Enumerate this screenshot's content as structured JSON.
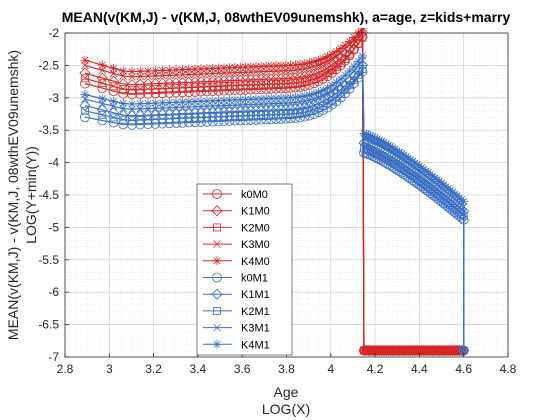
{
  "chart_data": {
    "type": "line",
    "title": "MEAN(v(KM,J) - v(KM,J, 08wthEV09unemshk), a=age, z=kids+marry",
    "xlabel": "Age",
    "xlabel2": "LOG(X)",
    "ylabel": "MEAN(v(KM,J) - v(KM,J, 08wthEV09unemshk)",
    "ylabel2": "LOG(Y+min(Y))",
    "xlim": [
      2.8,
      4.8
    ],
    "ylim": [
      -7,
      -2
    ],
    "xticks": [
      "2.8",
      "3",
      "3.2",
      "3.4",
      "3.6",
      "3.8",
      "4",
      "4.2",
      "4.4",
      "4.6",
      "4.8"
    ],
    "yticks": [
      "-2",
      "-2.5",
      "-3",
      "-3.5",
      "-4",
      "-4.5",
      "-5",
      "-5.5",
      "-6",
      "-6.5",
      "-7"
    ],
    "grid": true,
    "legend_position": "lower-center",
    "colors": {
      "red": "#d62728",
      "blue": "#3a6fc4"
    },
    "series": [
      {
        "name": "k0M0",
        "marker": "circle",
        "color": "red",
        "start": -2.78,
        "min": -2.95,
        "peak": -2.08,
        "post_start": -6.9,
        "post_end": -6.9
      },
      {
        "name": "K1M0",
        "marker": "diamond",
        "color": "red",
        "start": -2.62,
        "min": -2.8,
        "peak": -2.02,
        "post_start": -6.9,
        "post_end": -6.9
      },
      {
        "name": "K2M0",
        "marker": "square",
        "color": "red",
        "start": -2.7,
        "min": -2.88,
        "peak": -2.1,
        "post_start": -6.9,
        "post_end": -6.9
      },
      {
        "name": "K3M0",
        "marker": "x",
        "color": "red",
        "start": -2.5,
        "min": -2.68,
        "peak": -1.98,
        "post_start": -6.9,
        "post_end": -6.9
      },
      {
        "name": "K4M0",
        "marker": "star",
        "color": "red",
        "start": -2.42,
        "min": -2.6,
        "peak": -1.95,
        "post_start": -6.9,
        "post_end": -6.9
      },
      {
        "name": "k0M1",
        "marker": "circle",
        "color": "blue",
        "start": -3.3,
        "min": -3.42,
        "peak": -2.62,
        "post_start": -3.85,
        "post_end": -4.88
      },
      {
        "name": "K1M1",
        "marker": "diamond",
        "color": "blue",
        "start": -3.12,
        "min": -3.28,
        "peak": -2.52,
        "post_start": -3.7,
        "post_end": -4.75
      },
      {
        "name": "K2M1",
        "marker": "square",
        "color": "blue",
        "start": -3.2,
        "min": -3.35,
        "peak": -2.58,
        "post_start": -3.78,
        "post_end": -4.82
      },
      {
        "name": "K3M1",
        "marker": "x",
        "color": "blue",
        "start": -3.02,
        "min": -3.18,
        "peak": -2.45,
        "post_start": -3.62,
        "post_end": -4.68
      },
      {
        "name": "K4M1",
        "marker": "star",
        "color": "blue",
        "start": -2.95,
        "min": -3.1,
        "peak": -2.38,
        "post_start": -3.55,
        "post_end": -4.6
      }
    ],
    "x_points": {
      "start": 2.89,
      "pre_end": 4.143,
      "drop": 4.15,
      "post_end": 4.6,
      "post_points": 46
    }
  }
}
